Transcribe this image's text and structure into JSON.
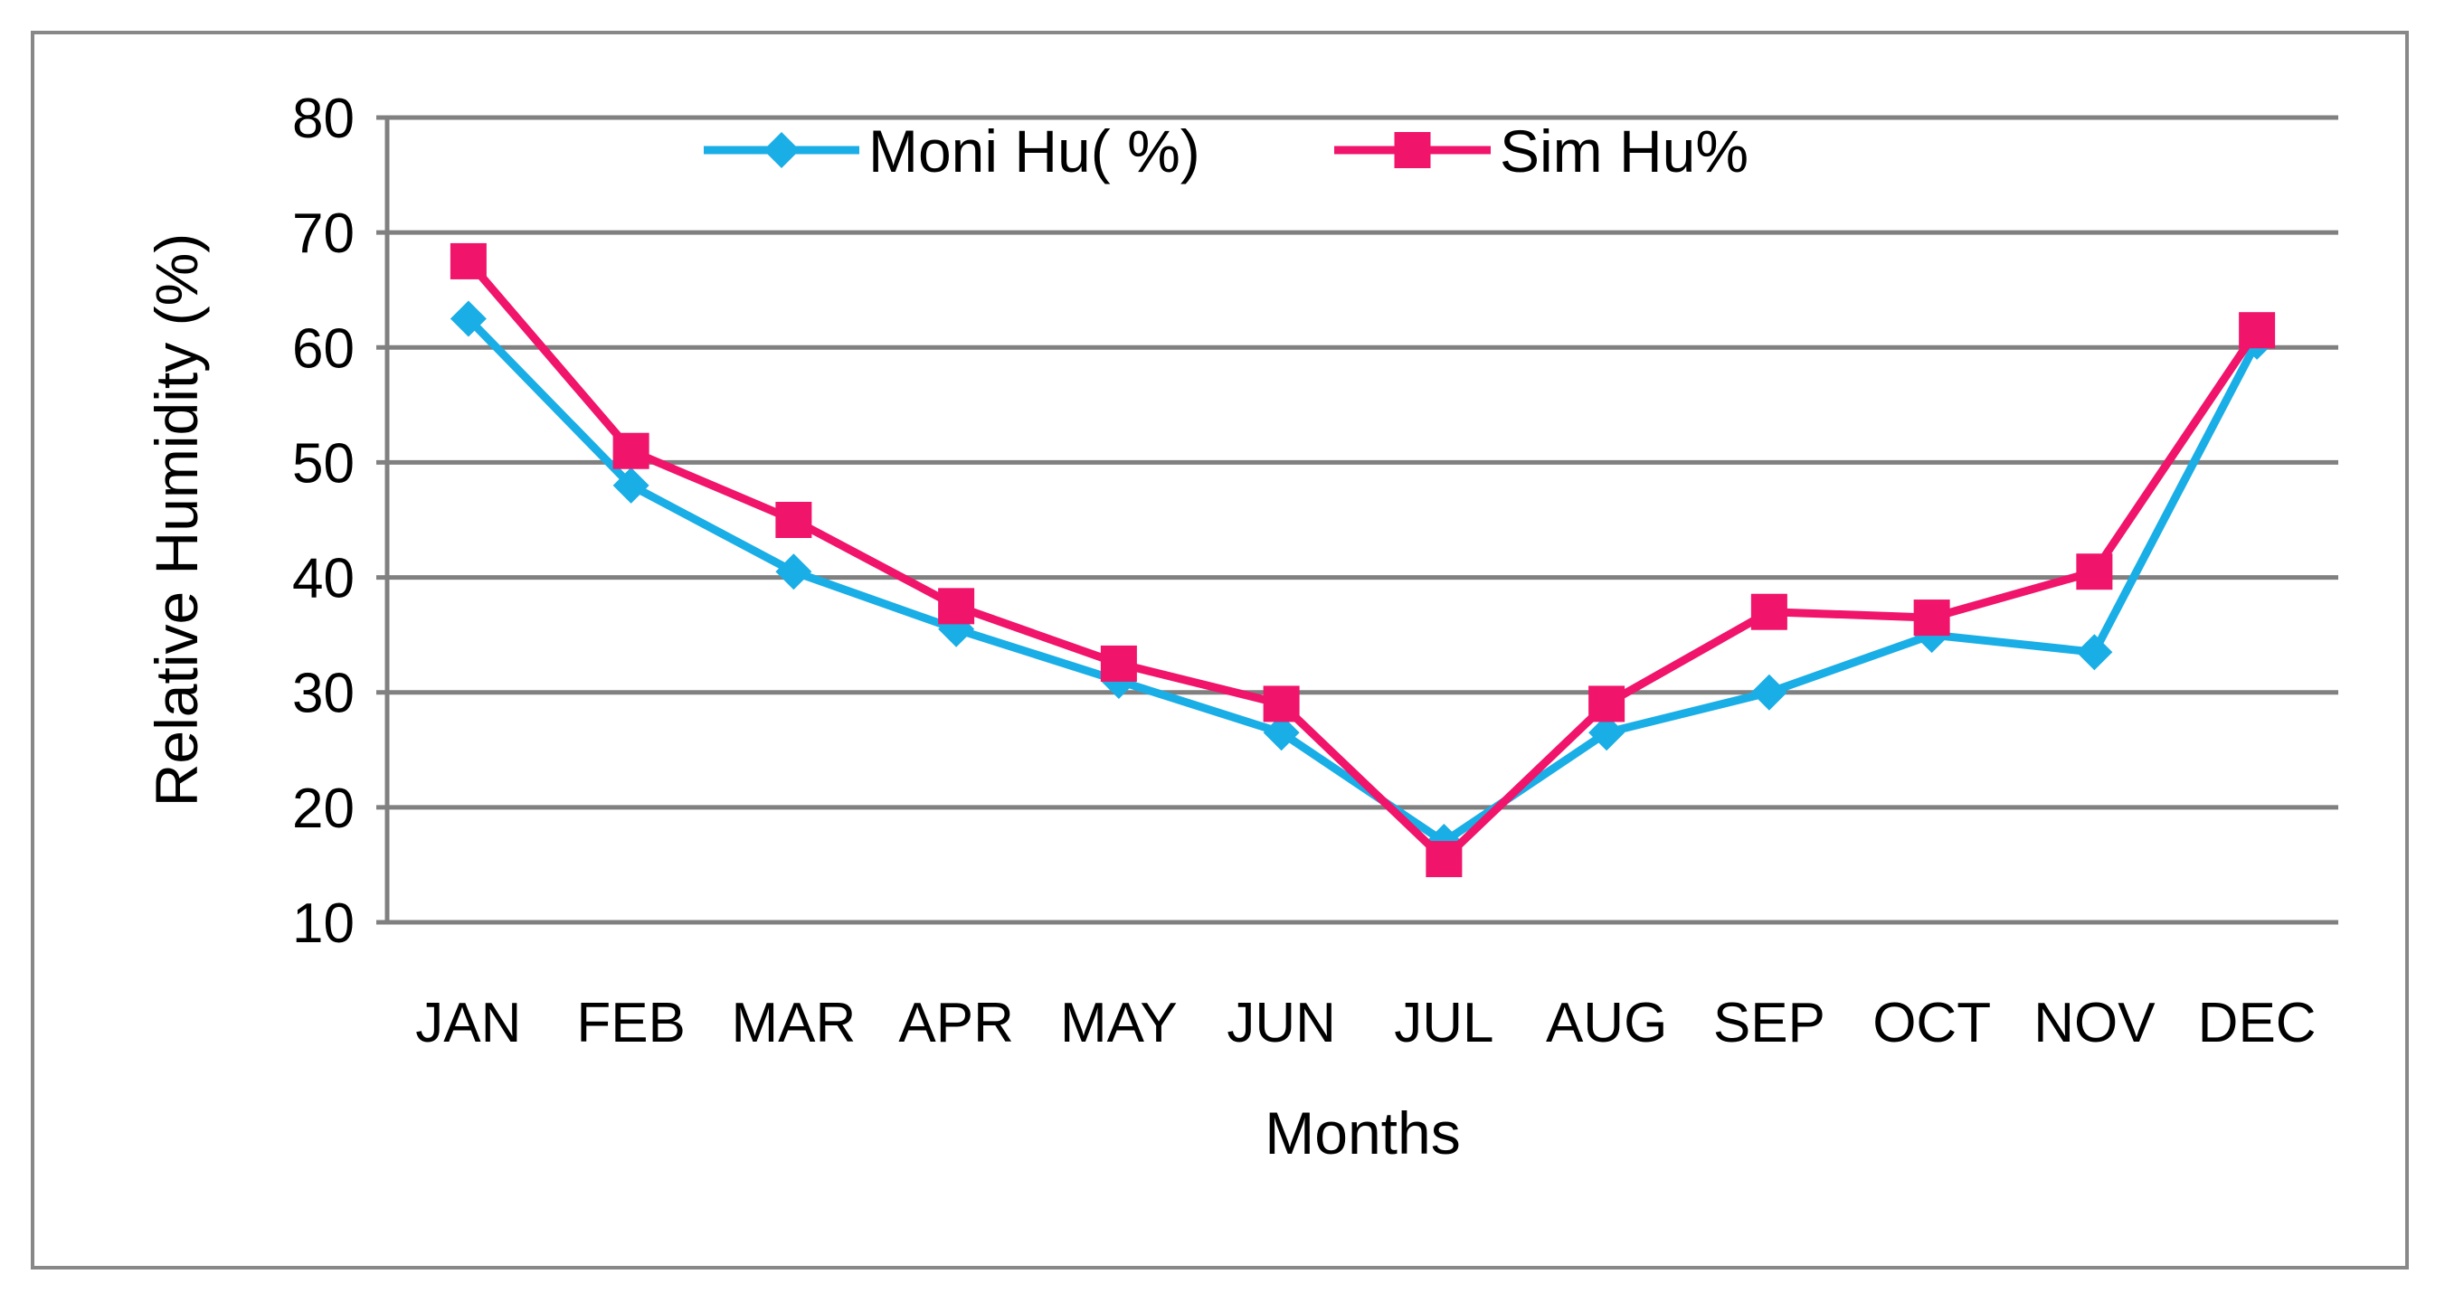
{
  "chart_data": {
    "type": "line",
    "title": "",
    "xlabel": "Months",
    "ylabel": "Relative Humidity (%)",
    "categories": [
      "JAN",
      "FEB",
      "MAR",
      "APR",
      "MAY",
      "JUN",
      "JUL",
      "AUG",
      "SEP",
      "OCT",
      "NOV",
      "DEC"
    ],
    "ylim": [
      10,
      80
    ],
    "yticks": [
      10,
      20,
      30,
      40,
      50,
      60,
      70,
      80
    ],
    "grid": "horizontal",
    "legend_position": "top-center",
    "series": [
      {
        "name": "Moni Hu( %)",
        "marker": "diamond",
        "color": "#1AAEE6",
        "values": [
          62.5,
          48,
          40.5,
          35.5,
          31,
          26.5,
          17,
          26.5,
          30,
          35,
          33.5,
          60.5
        ]
      },
      {
        "name": "Sim Hu%",
        "marker": "square",
        "color": "#F0146B",
        "values": [
          67.5,
          51,
          45,
          37.5,
          32.5,
          29,
          15.5,
          29,
          37,
          36.5,
          40.5,
          61.5
        ]
      }
    ]
  }
}
